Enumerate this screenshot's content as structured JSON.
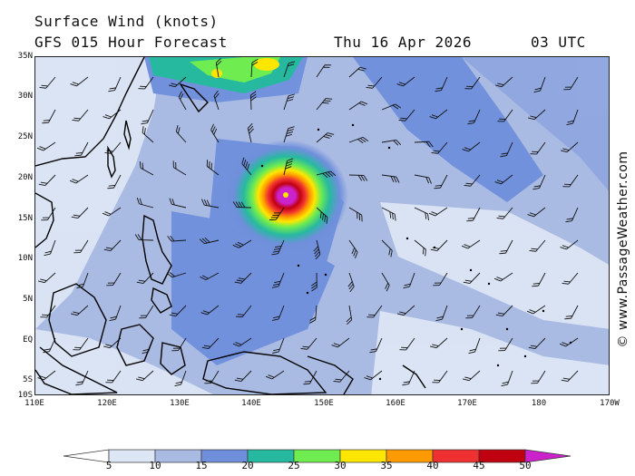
{
  "header": {
    "title": "Surface Wind (knots)",
    "forecast": "GFS 015 Hour Forecast",
    "date": "Thu 16 Apr 2026",
    "time": "03 UTC"
  },
  "axes": {
    "lat_labels": [
      "35N",
      "30N",
      "25N",
      "20N",
      "15N",
      "10N",
      "5N",
      "EQ",
      "5S",
      "10S"
    ],
    "lon_labels": [
      "110E",
      "120E",
      "130E",
      "140E",
      "150E",
      "160E",
      "170E",
      "180",
      "170W"
    ]
  },
  "credit": "© www.PassageWeather.com",
  "colorbar": {
    "labels": [
      "5",
      "10",
      "15",
      "20",
      "25",
      "30",
      "35",
      "40",
      "45",
      "50"
    ],
    "colors": [
      "#ffffff",
      "#dde6f5",
      "#aabbe3",
      "#6f8fdc",
      "#27b9a0",
      "#6fec4f",
      "#ffe600",
      "#ff9a00",
      "#ee3030",
      "#c00010",
      "#cc22cc"
    ]
  },
  "storm": {
    "name_visible": false,
    "center_lat": 18.5,
    "center_lon": 145.5,
    "max_wind_kt": 50
  }
}
